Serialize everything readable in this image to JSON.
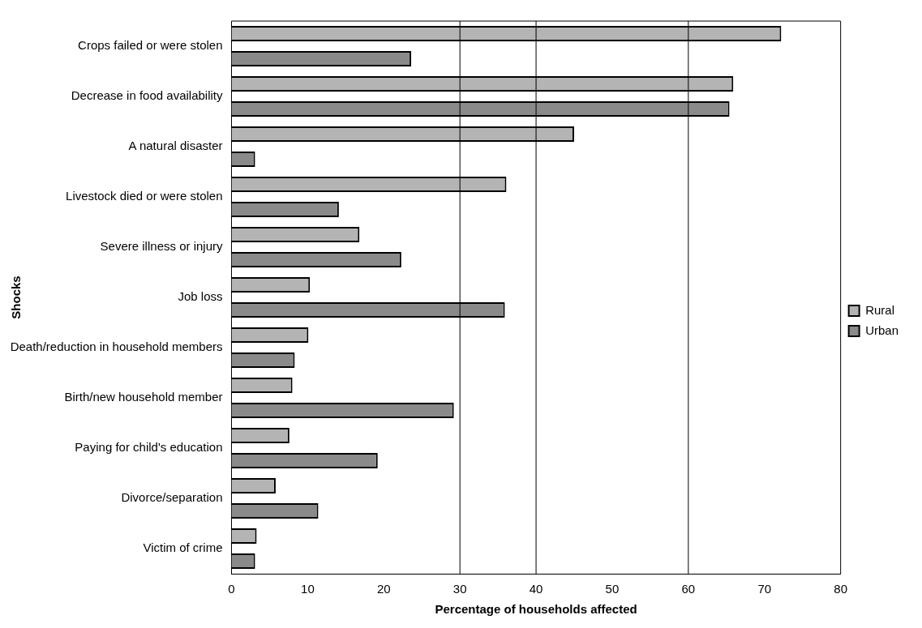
{
  "chart_data": {
    "type": "bar",
    "orientation": "horizontal",
    "xlabel": "Percentage of households affected",
    "ylabel": "Shocks",
    "categories": [
      "Crops failed or were stolen",
      "Decrease in food availability",
      "A natural disaster",
      "Livestock died or were stolen",
      "Severe illness or injury",
      "Job loss",
      "Death/reduction in household members",
      "Birth/new household member",
      "Paying for child's education",
      "Divorce/separation",
      "Victim of crime"
    ],
    "series": [
      {
        "name": "Rural",
        "color": "#b4b4b4",
        "values": [
          72.2,
          65.9,
          45.0,
          36.1,
          16.8,
          10.3,
          10.1,
          8.0,
          7.6,
          5.8,
          3.3
        ]
      },
      {
        "name": "Urban",
        "color": "#8a8a8a",
        "values": [
          23.6,
          65.4,
          3.1,
          14.1,
          22.3,
          35.9,
          8.3,
          29.2,
          19.2,
          11.4,
          3.1
        ]
      }
    ],
    "xlim": [
      0,
      80
    ],
    "xticks": [
      0,
      10,
      20,
      30,
      40,
      50,
      60,
      70,
      80
    ],
    "ref_lines": [
      {
        "axis": "x",
        "value": 30,
        "color": "#000000"
      },
      {
        "axis": "x",
        "value": 40,
        "color": "#000000"
      },
      {
        "axis": "x",
        "value": 60,
        "color": "#000000"
      }
    ],
    "grid": false,
    "legend": "right"
  }
}
